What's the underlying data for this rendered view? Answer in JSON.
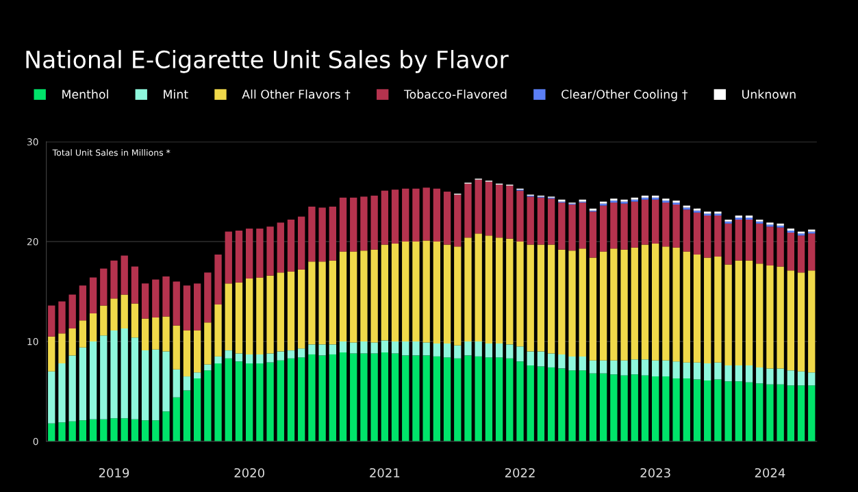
{
  "chart_data": {
    "type": "bar",
    "stacked": true,
    "title": "National E-Cigarette Unit Sales by Flavor",
    "ylabel": "Total Unit Sales in Millions *",
    "categories": [
      null,
      null,
      null,
      null,
      null,
      null,
      "2019",
      null,
      null,
      null,
      null,
      null,
      null,
      null,
      null,
      null,
      null,
      null,
      null,
      "2020",
      null,
      null,
      null,
      null,
      null,
      null,
      null,
      null,
      null,
      null,
      null,
      null,
      "2021",
      null,
      null,
      null,
      null,
      null,
      null,
      null,
      null,
      null,
      null,
      null,
      null,
      "2022",
      null,
      null,
      null,
      null,
      null,
      null,
      null,
      null,
      null,
      null,
      null,
      null,
      "2023",
      null,
      null,
      null,
      null,
      null,
      null,
      null,
      null,
      null,
      null,
      "2024",
      null,
      null,
      null,
      null
    ],
    "ylim": [
      0,
      30
    ],
    "yticks": [
      0,
      10,
      20,
      30
    ],
    "grid": "y",
    "legend": "top",
    "series": [
      {
        "name": "Menthol",
        "color": "#00e46a",
        "values": [
          1.8,
          1.9,
          2.0,
          2.1,
          2.2,
          2.2,
          2.3,
          2.3,
          2.2,
          2.1,
          2.1,
          3.0,
          4.4,
          5.1,
          6.3,
          7.1,
          7.8,
          8.3,
          8.0,
          7.8,
          7.8,
          7.9,
          8.1,
          8.3,
          8.4,
          8.7,
          8.6,
          8.7,
          8.9,
          8.8,
          8.8,
          8.8,
          8.9,
          8.8,
          8.6,
          8.6,
          8.6,
          8.5,
          8.4,
          8.3,
          8.6,
          8.5,
          8.4,
          8.4,
          8.3,
          8.0,
          7.6,
          7.5,
          7.4,
          7.3,
          7.1,
          7.1,
          6.8,
          6.8,
          6.7,
          6.6,
          6.7,
          6.6,
          6.5,
          6.5,
          6.3,
          6.3,
          6.2,
          6.1,
          6.2,
          6.0,
          6.0,
          5.9,
          5.8,
          5.7,
          5.7,
          5.6,
          5.6,
          5.6
        ]
      },
      {
        "name": "Mint",
        "color": "#8ef7dc",
        "values": [
          5.2,
          5.9,
          6.6,
          7.3,
          7.8,
          8.4,
          8.8,
          9.0,
          8.2,
          7.0,
          7.1,
          6.0,
          2.8,
          1.4,
          0.6,
          0.6,
          0.7,
          0.8,
          0.8,
          0.9,
          0.9,
          0.9,
          0.9,
          0.8,
          0.9,
          1.0,
          1.1,
          1.0,
          1.1,
          1.1,
          1.2,
          1.1,
          1.2,
          1.2,
          1.4,
          1.4,
          1.3,
          1.3,
          1.4,
          1.3,
          1.4,
          1.5,
          1.4,
          1.4,
          1.4,
          1.5,
          1.4,
          1.5,
          1.4,
          1.4,
          1.4,
          1.4,
          1.3,
          1.3,
          1.4,
          1.5,
          1.5,
          1.6,
          1.6,
          1.6,
          1.7,
          1.6,
          1.7,
          1.7,
          1.7,
          1.6,
          1.6,
          1.7,
          1.6,
          1.6,
          1.6,
          1.5,
          1.4,
          1.3
        ]
      },
      {
        "name": "All Other Flavors †",
        "color": "#f0d94a",
        "values": [
          3.5,
          3.0,
          2.7,
          2.7,
          2.8,
          3.0,
          3.2,
          3.4,
          3.4,
          3.2,
          3.2,
          3.5,
          4.4,
          4.6,
          4.2,
          4.2,
          5.2,
          6.7,
          7.1,
          7.6,
          7.7,
          7.8,
          7.9,
          7.9,
          7.9,
          8.3,
          8.3,
          8.4,
          9.0,
          9.1,
          9.1,
          9.3,
          9.6,
          9.8,
          10.0,
          10.0,
          10.2,
          10.2,
          9.9,
          9.9,
          10.4,
          10.8,
          10.8,
          10.6,
          10.6,
          10.5,
          10.7,
          10.7,
          10.9,
          10.5,
          10.6,
          10.8,
          10.3,
          10.9,
          11.2,
          11.1,
          11.2,
          11.5,
          11.7,
          11.4,
          11.4,
          11.1,
          10.8,
          10.6,
          10.6,
          10.1,
          10.5,
          10.5,
          10.4,
          10.3,
          10.2,
          10.0,
          9.9,
          10.2
        ]
      },
      {
        "name": "Tobacco-Flavored",
        "color": "#b5334e",
        "values": [
          3.1,
          3.2,
          3.4,
          3.5,
          3.6,
          3.7,
          3.8,
          3.9,
          3.7,
          3.5,
          3.8,
          4.0,
          4.4,
          4.5,
          4.7,
          5.0,
          5.0,
          5.2,
          5.2,
          5.0,
          4.9,
          4.9,
          5.0,
          5.2,
          5.3,
          5.5,
          5.4,
          5.4,
          5.4,
          5.4,
          5.4,
          5.4,
          5.4,
          5.4,
          5.3,
          5.3,
          5.3,
          5.3,
          5.3,
          5.2,
          5.4,
          5.4,
          5.4,
          5.3,
          5.3,
          5.1,
          4.8,
          4.7,
          4.6,
          4.7,
          4.6,
          4.6,
          4.6,
          4.6,
          4.6,
          4.6,
          4.6,
          4.5,
          4.4,
          4.4,
          4.3,
          4.2,
          4.2,
          4.2,
          4.1,
          4.1,
          4.1,
          4.1,
          4.0,
          3.9,
          3.9,
          3.8,
          3.7,
          3.7
        ]
      },
      {
        "name": "Clear/Other Cooling †",
        "color": "#5b7ff5",
        "values": [
          0,
          0,
          0,
          0,
          0,
          0,
          0,
          0,
          0,
          0,
          0,
          0,
          0,
          0,
          0,
          0,
          0,
          0,
          0,
          0,
          0,
          0,
          0,
          0,
          0,
          0,
          0,
          0,
          0,
          0,
          0,
          0,
          0,
          0,
          0,
          0,
          0,
          0,
          0,
          0,
          0,
          0,
          0,
          0,
          0,
          0.1,
          0.1,
          0.1,
          0.1,
          0.1,
          0.1,
          0.1,
          0.1,
          0.2,
          0.2,
          0.2,
          0.2,
          0.2,
          0.2,
          0.2,
          0.2,
          0.2,
          0.2,
          0.2,
          0.2,
          0.2,
          0.2,
          0.2,
          0.2,
          0.2,
          0.2,
          0.2,
          0.2,
          0.2
        ]
      },
      {
        "name": "Unknown",
        "color": "#ffffff",
        "values": [
          0,
          0,
          0,
          0,
          0,
          0,
          0,
          0,
          0,
          0,
          0,
          0,
          0,
          0,
          0,
          0,
          0,
          0,
          0,
          0,
          0,
          0,
          0,
          0,
          0,
          0,
          0,
          0,
          0,
          0,
          0,
          0,
          0,
          0,
          0,
          0,
          0,
          0,
          0,
          0.1,
          0.1,
          0.1,
          0.1,
          0.1,
          0.1,
          0.1,
          0.1,
          0.1,
          0.1,
          0.2,
          0.1,
          0.2,
          0.2,
          0.2,
          0.2,
          0.2,
          0.2,
          0.2,
          0.2,
          0.2,
          0.2,
          0.2,
          0.2,
          0.2,
          0.2,
          0.2,
          0.2,
          0.2,
          0.2,
          0.2,
          0.2,
          0.2,
          0.2,
          0.2
        ]
      }
    ]
  }
}
